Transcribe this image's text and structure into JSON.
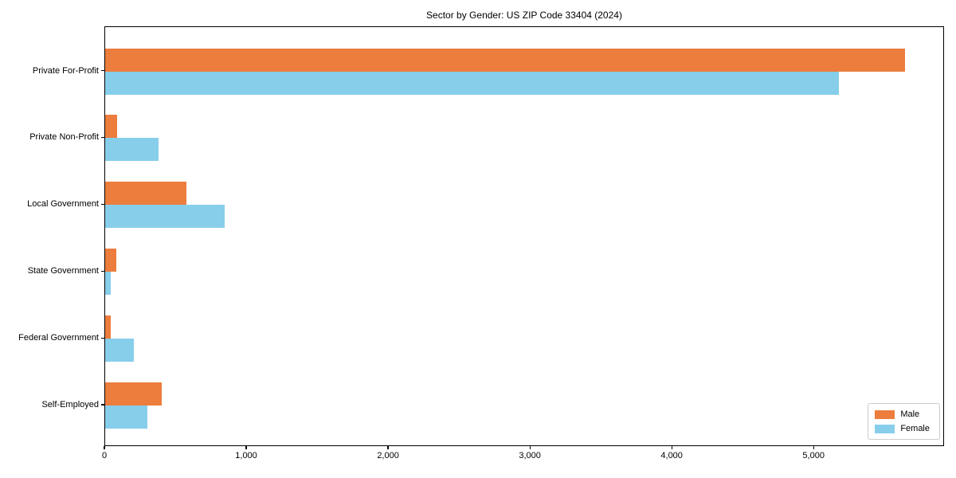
{
  "chart_data": {
    "type": "bar",
    "orientation": "horizontal",
    "title": "Sector by Gender: US ZIP Code 33404 (2024)",
    "categories": [
      "Private For-Profit",
      "Private Non-Profit",
      "Local Government",
      "State Government",
      "Federal Government",
      "Self-Employed"
    ],
    "series": [
      {
        "name": "Male",
        "color": "#ec7d3d",
        "values": [
          5640,
          85,
          570,
          80,
          38,
          400
        ]
      },
      {
        "name": "Female",
        "color": "#87ceeb",
        "values": [
          5170,
          375,
          840,
          40,
          200,
          300
        ]
      }
    ],
    "xlabel": "",
    "ylabel": "",
    "xlim": [
      0,
      5920
    ],
    "x_ticks": [
      0,
      1000,
      2000,
      3000,
      4000,
      5000
    ],
    "x_tick_labels": [
      "0",
      "1,000",
      "2,000",
      "3,000",
      "4,000",
      "5,000"
    ],
    "legend_position": "lower right",
    "grid": false,
    "colors": {
      "axis": "#000000",
      "legend_border": "#cccccc",
      "background": "#ffffff"
    }
  }
}
